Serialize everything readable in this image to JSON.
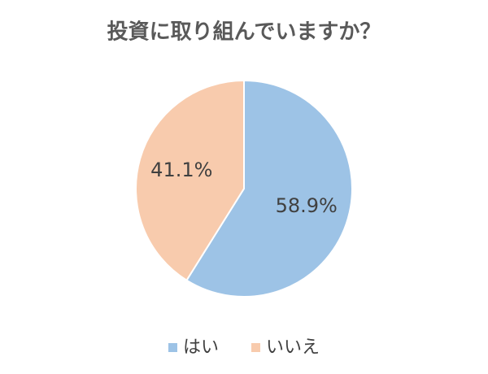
{
  "chart_data": {
    "type": "pie",
    "title": "投資に取り組んでいますか？",
    "categories": [
      "はい",
      "いいえ"
    ],
    "values": [
      58.9,
      41.1
    ],
    "value_labels": [
      "58.9%",
      "41.1%"
    ],
    "colors": [
      "#9dc3e6",
      "#f8cbad"
    ],
    "legend": "bottom"
  }
}
